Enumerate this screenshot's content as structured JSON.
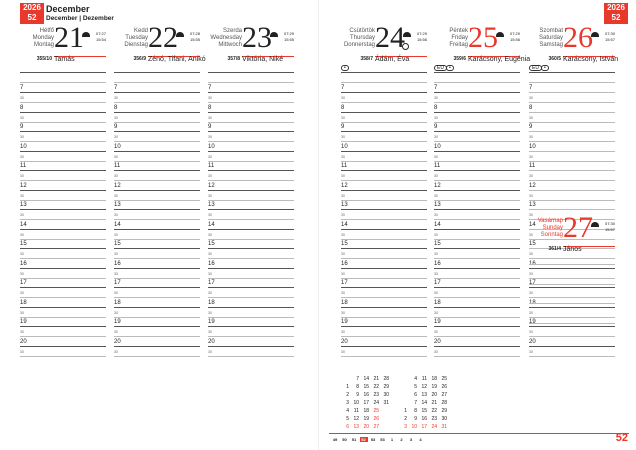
{
  "year": "2026",
  "week": "52",
  "header": {
    "month": "December",
    "subtitle": "December | Dezember"
  },
  "hours": [
    "7",
    "8",
    "9",
    "10",
    "11",
    "12",
    "13",
    "14",
    "15",
    "16",
    "17",
    "18",
    "19",
    "20"
  ],
  "half_label": "30",
  "accent": "#e8392c",
  "days": [
    {
      "names": [
        "Hétfő",
        "Monday",
        "Montag"
      ],
      "date": "21",
      "rise": "07:27",
      "set": "15:54",
      "dayno": "355/10",
      "nameday": "Tamás",
      "red": false
    },
    {
      "names": [
        "Kedd",
        "Tuesday",
        "Dienstag"
      ],
      "date": "22",
      "rise": "07:28",
      "set": "15:55",
      "dayno": "356/9",
      "nameday": "Zénó, Tifani, Anikó",
      "red": false
    },
    {
      "names": [
        "Szerda",
        "Wednesday",
        "Mittwoch"
      ],
      "date": "23",
      "rise": "07:29",
      "set": "15:55",
      "dayno": "357/8",
      "nameday": "Viktória, Niké",
      "red": false
    },
    {
      "names": [
        "Csütörtök",
        "Thursday",
        "Donnerstag"
      ],
      "date": "24",
      "rise": "07:29",
      "set": "15:56",
      "dayno": "358/7",
      "nameday": "Ádám, Éva",
      "red": false,
      "moon": true,
      "marks": [
        "◉"
      ]
    },
    {
      "names": [
        "Péntek",
        "Friday",
        "Freitag"
      ],
      "date": "25",
      "rise": "07:29",
      "set": "15:56",
      "dayno": "359/6",
      "nameday": "Karácsony, Eugénia",
      "red": true,
      "marks": [
        "EU",
        "◉"
      ]
    },
    {
      "names": [
        "Szombat",
        "Saturday",
        "Samstag"
      ],
      "date": "26",
      "rise": "07:30",
      "set": "15:57",
      "dayno": "360/5",
      "nameday": "Karácsony, István",
      "red": true,
      "marks": [
        "EU",
        "◉"
      ]
    }
  ],
  "sunday": {
    "names": [
      "Vasárnap",
      "Sunday",
      "Sonntag"
    ],
    "date": "27",
    "rise": "07:30",
    "set": "15:57",
    "dayno": "361/4",
    "nameday": "János"
  },
  "mini_calendar": {
    "dec": [
      [
        "",
        "7",
        "14",
        "21",
        "28"
      ],
      [
        "1",
        "8",
        "15",
        "22",
        "29"
      ],
      [
        "2",
        "9",
        "16",
        "23",
        "30"
      ],
      [
        "3",
        "10",
        "17",
        "24",
        "31"
      ],
      [
        "4",
        "11",
        "18",
        "25",
        ""
      ],
      [
        "5",
        "12",
        "19",
        "26",
        ""
      ],
      [
        "6",
        "13",
        "20",
        "27",
        ""
      ]
    ],
    "jan": [
      [
        "",
        "4",
        "11",
        "18",
        "25"
      ],
      [
        "",
        "5",
        "12",
        "19",
        "26"
      ],
      [
        "",
        "6",
        "13",
        "20",
        "27"
      ],
      [
        "",
        "7",
        "14",
        "21",
        "28"
      ],
      [
        "1",
        "8",
        "15",
        "22",
        "29"
      ],
      [
        "2",
        "9",
        "16",
        "23",
        "30"
      ],
      [
        "3",
        "10",
        "17",
        "24",
        "31"
      ]
    ],
    "red_dec": [
      "25",
      "26"
    ],
    "weeks": [
      "49",
      "50",
      "51",
      "52",
      "53",
      "53",
      "1",
      "2",
      "3",
      "4"
    ],
    "current_week": "52"
  },
  "page_number": "52"
}
